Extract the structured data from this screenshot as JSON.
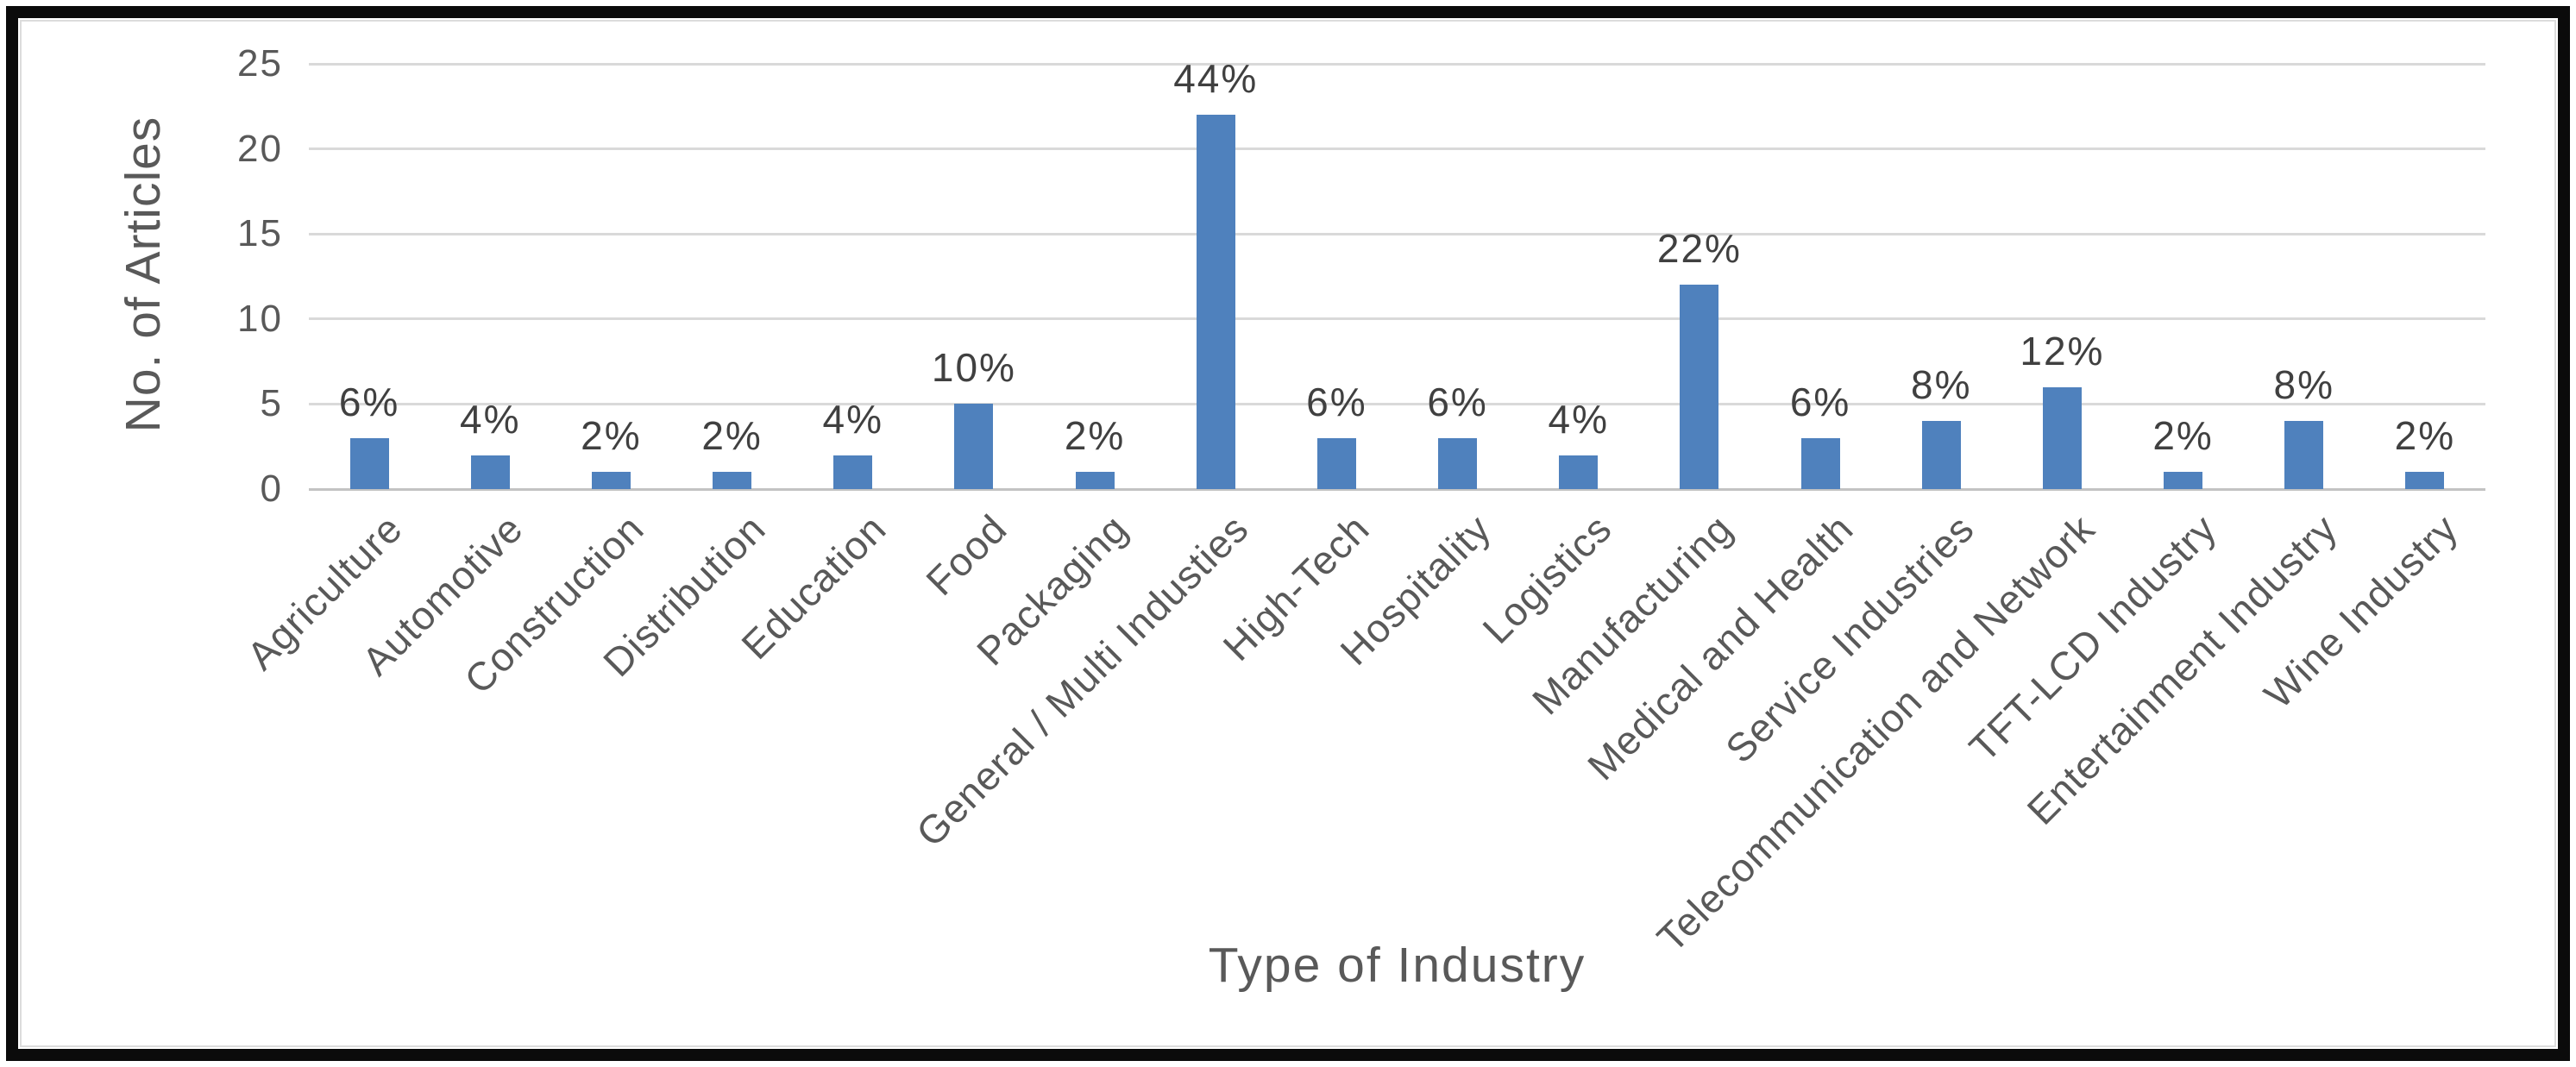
{
  "figure": {
    "background_color": "#ffffff",
    "outer_border_color": "#0b0b0b",
    "chart_border_color": "#dcdcdc"
  },
  "chart_data": {
    "type": "bar",
    "title": "",
    "xlabel": "Type of Industry",
    "ylabel": "No. of Articles",
    "categories": [
      "Agriculture",
      "Automotive",
      "Construction",
      "Distribution",
      "Education",
      "Food",
      "Packaging",
      "General / Multi Industies",
      "High-Tech",
      "Hospitality",
      "Logistics",
      "Manufacturing",
      "Medical and Health",
      "Service Industries",
      "Telecommunication and Network",
      "TFT-LCD Industry",
      "Entertainment Industry",
      "Wine Industry"
    ],
    "values": [
      3,
      2,
      1,
      1,
      2,
      5,
      1,
      22,
      3,
      3,
      2,
      12,
      3,
      4,
      6,
      1,
      4,
      1
    ],
    "data_labels": [
      "6%",
      "4%",
      "2%",
      "2%",
      "4%",
      "10%",
      "2%",
      "44%",
      "6%",
      "6%",
      "4%",
      "22%",
      "6%",
      "8%",
      "12%",
      "2%",
      "8%",
      "2%"
    ],
    "y_ticks": [
      0,
      5,
      10,
      15,
      20,
      25
    ],
    "ylim": [
      0,
      25
    ],
    "grid": true,
    "legend": false,
    "bar_color": "#4F81BD",
    "gridline_color": "#d9d9d9",
    "axis_line_color": "#c3c3c3",
    "tick_text_color": "#595959",
    "data_label_color": "#404040"
  }
}
